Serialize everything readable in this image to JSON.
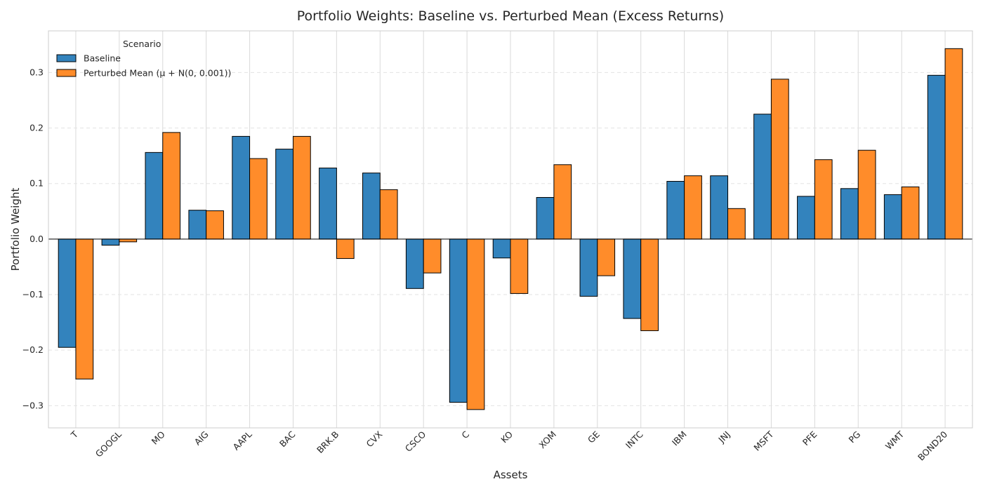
{
  "chart_data": {
    "type": "bar",
    "title": "Portfolio Weights: Baseline vs. Perturbed Mean (Excess Returns)",
    "xlabel": "Assets",
    "ylabel": "Portfolio Weight",
    "ylim": [
      -0.34,
      0.375
    ],
    "yticks": [
      -0.3,
      -0.2,
      -0.1,
      0.0,
      0.1,
      0.2,
      0.3
    ],
    "ytick_labels": [
      "−0.3",
      "−0.2",
      "−0.1",
      "0.0",
      "0.1",
      "0.2",
      "0.3"
    ],
    "grid": true,
    "legend": {
      "title": "Scenario",
      "placement": "top-left"
    },
    "categories": [
      "T",
      "GOOGL",
      "MO",
      "AIG",
      "AAPL",
      "BAC",
      "BRK.B",
      "CVX",
      "CSCO",
      "C",
      "KO",
      "XOM",
      "GE",
      "INTC",
      "IBM",
      "JNJ",
      "MSFT",
      "PFE",
      "PG",
      "WMT",
      "BOND20"
    ],
    "series": [
      {
        "name": "Baseline",
        "color": "#3383BD",
        "values": [
          -0.195,
          -0.011,
          0.156,
          0.052,
          0.185,
          0.162,
          0.128,
          0.119,
          -0.089,
          -0.294,
          -0.034,
          0.075,
          -0.103,
          -0.143,
          0.104,
          0.114,
          0.225,
          0.077,
          0.091,
          0.08,
          0.295
        ]
      },
      {
        "name": "Perturbed Mean (μ + N(0, 0.001))",
        "color": "#FF8C2A",
        "values": [
          -0.252,
          -0.005,
          0.192,
          0.051,
          0.145,
          0.185,
          -0.035,
          0.089,
          -0.061,
          -0.307,
          -0.098,
          0.134,
          -0.066,
          -0.165,
          0.114,
          0.055,
          0.288,
          0.143,
          0.16,
          0.094,
          0.343
        ]
      }
    ]
  }
}
